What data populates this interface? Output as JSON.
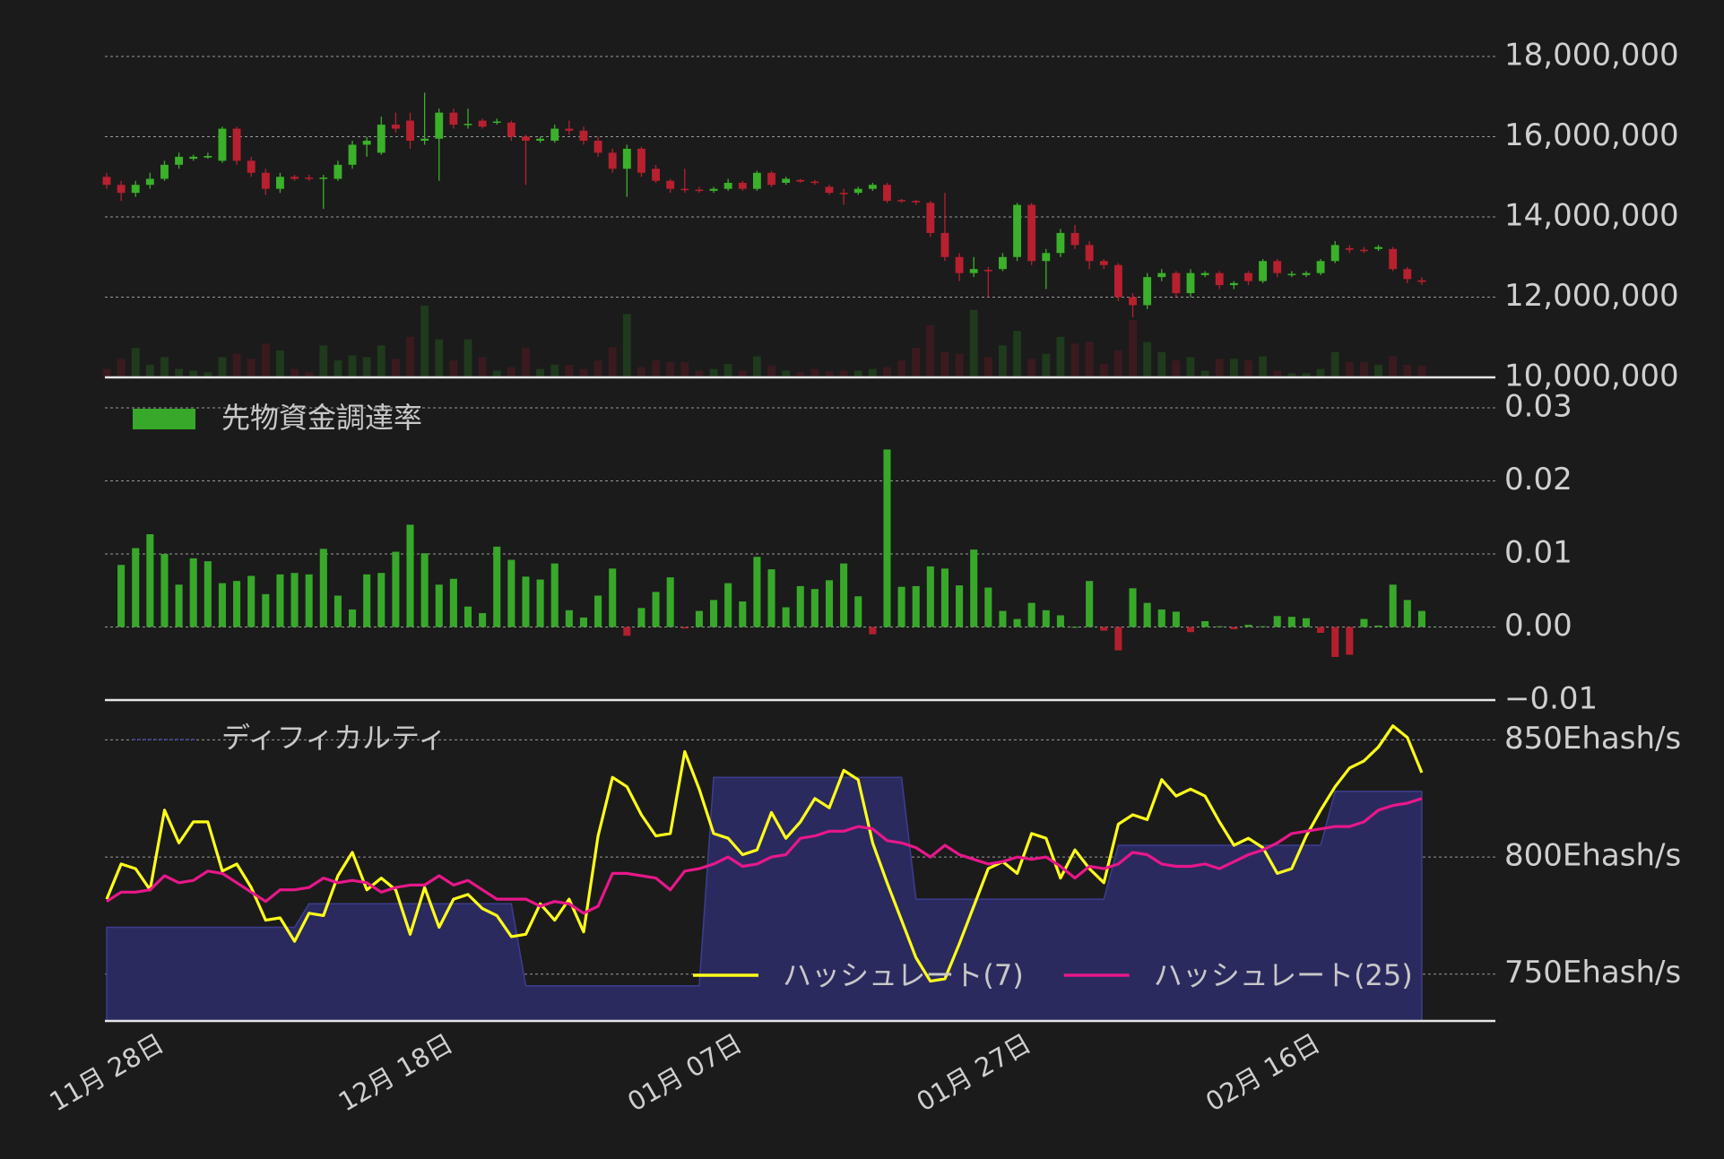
{
  "chart_data": [
    {
      "type": "candlestick",
      "open": [
        15000000,
        14800000,
        14600000,
        14800000,
        14950000,
        15300000,
        15450000,
        15480000,
        15400000,
        16200000,
        15400000,
        15100000,
        14700000,
        15000000,
        14980000,
        14950000,
        14950000,
        15300000,
        15800000,
        15600000,
        16300000,
        16400000,
        15900000,
        15950000,
        16600000,
        16300000,
        16400000,
        16350000,
        16350000,
        16000000,
        15900000,
        15900000,
        16200000,
        16150000,
        15900000,
        15600000,
        15200000,
        15700000,
        15200000,
        14900000,
        14700000,
        14680000,
        14650000,
        14700000,
        14850000,
        14700000,
        15100000,
        14850000,
        14920000,
        14880000,
        14750000,
        14600000,
        14600000,
        14700000,
        14800000,
        14420000,
        14400000,
        14350000,
        13600000,
        13000000,
        12600000,
        12680000,
        12700000,
        13000000,
        14300000,
        12900000,
        13100000,
        13600000,
        13300000,
        12900000,
        12800000,
        12000000,
        11800000,
        12500000,
        12600000,
        12100000,
        12550000,
        12600000,
        12300000,
        12600000,
        12400000,
        12900000,
        12550000,
        12550000,
        12600000,
        12900000,
        13220000,
        13180000,
        13200000,
        13200000,
        12700000,
        12420000
      ],
      "high": [
        15100000,
        14900000,
        14900000,
        15100000,
        15400000,
        15600000,
        15550000,
        15600000,
        16250000,
        16250000,
        15500000,
        15200000,
        15100000,
        15050000,
        15050000,
        15050000,
        15400000,
        15900000,
        16000000,
        16500000,
        16600000,
        16600000,
        17100000,
        16700000,
        16700000,
        16700000,
        16450000,
        16450000,
        16400000,
        16050000,
        16000000,
        16300000,
        16400000,
        16250000,
        16000000,
        15700000,
        15800000,
        15750000,
        15300000,
        14950000,
        15200000,
        14750000,
        14750000,
        14950000,
        14900000,
        15150000,
        15150000,
        15000000,
        14950000,
        14920000,
        14800000,
        14700000,
        14750000,
        14850000,
        14850000,
        14450000,
        14420000,
        14400000,
        14600000,
        13100000,
        13000000,
        12750000,
        13100000,
        14350000,
        14350000,
        13200000,
        13700000,
        13800000,
        13400000,
        12950000,
        12850000,
        12100000,
        12600000,
        12700000,
        12650000,
        12700000,
        12650000,
        12650000,
        12400000,
        12650000,
        12950000,
        12950000,
        12650000,
        12650000,
        12950000,
        13400000,
        13300000,
        13250000,
        13300000,
        13250000,
        12750000,
        12500000
      ],
      "low": [
        14700000,
        14400000,
        14500000,
        14700000,
        14900000,
        15200000,
        15400000,
        15450000,
        15350000,
        15300000,
        15000000,
        14550000,
        14600000,
        14900000,
        14900000,
        14200000,
        14900000,
        15200000,
        15500000,
        15550000,
        16100000,
        15700000,
        15800000,
        14900000,
        16200000,
        16200000,
        16200000,
        16300000,
        15900000,
        14800000,
        15850000,
        15850000,
        16050000,
        15800000,
        15500000,
        15100000,
        14500000,
        15000000,
        14850000,
        14600000,
        14600000,
        14600000,
        14600000,
        14650000,
        14650000,
        14650000,
        14750000,
        14800000,
        14850000,
        14800000,
        14550000,
        14300000,
        14550000,
        14650000,
        14350000,
        14350000,
        14300000,
        13500000,
        12900000,
        12400000,
        12500000,
        12000000,
        12650000,
        12900000,
        12800000,
        12200000,
        13000000,
        13200000,
        12700000,
        12700000,
        11900000,
        11500000,
        11700000,
        12400000,
        12000000,
        12000000,
        12500000,
        12200000,
        12200000,
        12300000,
        12350000,
        12500000,
        12500000,
        12500000,
        12550000,
        12850000,
        13100000,
        13100000,
        13150000,
        12650000,
        12350000,
        12300000
      ],
      "close": [
        14800000,
        14600000,
        14800000,
        14950000,
        15300000,
        15500000,
        15500000,
        15520000,
        16200000,
        15400000,
        15100000,
        14700000,
        15000000,
        14950000,
        14950000,
        14980000,
        15300000,
        15800000,
        15900000,
        16300000,
        16200000,
        15900000,
        15950000,
        16600000,
        16300000,
        16320000,
        16250000,
        16380000,
        16000000,
        15900000,
        15950000,
        16200000,
        16150000,
        15900000,
        15600000,
        15200000,
        15700000,
        15100000,
        14900000,
        14700000,
        14680000,
        14650000,
        14700000,
        14850000,
        14700000,
        15100000,
        14800000,
        14950000,
        14880000,
        14850000,
        14600000,
        14580000,
        14700000,
        14800000,
        14400000,
        14400000,
        14380000,
        13600000,
        13000000,
        12600000,
        12700000,
        12650000,
        13000000,
        14300000,
        12900000,
        13100000,
        13600000,
        13300000,
        12900000,
        12800000,
        12000000,
        11800000,
        12500000,
        12600000,
        12100000,
        12600000,
        12600000,
        12300000,
        12350000,
        12400000,
        12900000,
        12600000,
        12580000,
        12600000,
        12900000,
        13300000,
        13180000,
        13150000,
        13250000,
        12700000,
        12450000,
        12380000
      ],
      "volume": [
        10,
        22,
        35,
        15,
        24,
        10,
        8,
        6,
        24,
        28,
        22,
        40,
        32,
        10,
        6,
        38,
        20,
        26,
        24,
        38,
        22,
        48,
        85,
        45,
        20,
        45,
        24,
        8,
        12,
        35,
        10,
        15,
        15,
        10,
        20,
        36,
        75,
        12,
        20,
        18,
        18,
        8,
        10,
        16,
        8,
        25,
        14,
        8,
        6,
        10,
        7,
        8,
        8,
        10,
        12,
        20,
        35,
        62,
        30,
        28,
        80,
        24,
        38,
        55,
        22,
        28,
        48,
        40,
        42,
        16,
        32,
        68,
        42,
        30,
        20,
        24,
        8,
        22,
        22,
        20,
        25,
        8,
        5,
        5,
        10,
        30,
        18,
        18,
        15,
        25,
        15,
        14
      ],
      "up_color": "#3bb02a",
      "down_color": "#b8202f",
      "up_volume_color": "#1f3a1c",
      "down_volume_color": "#3b1a1f",
      "ylim": [
        10000000,
        18000000
      ],
      "yticks": [
        {
          "value": 10000000,
          "label": "10,000,000"
        },
        {
          "value": 12000000,
          "label": "12,000,000"
        },
        {
          "value": 14000000,
          "label": "14,000,000"
        },
        {
          "value": 16000000,
          "label": "16,000,000"
        },
        {
          "value": 18000000,
          "label": "18,000,000"
        }
      ],
      "grid": true
    },
    {
      "type": "bar",
      "series": [
        {
          "name": "先物資金調達率",
          "color": "#38a82a",
          "negative_color": "#b31f2e",
          "values": [
            null,
            0.0085,
            0.0108,
            0.0127,
            0.01,
            0.0058,
            0.0094,
            0.009,
            0.006,
            0.0063,
            0.007,
            0.0045,
            0.0072,
            0.0074,
            0.0072,
            0.0107,
            0.0043,
            0.0024,
            0.0072,
            0.0074,
            0.0103,
            0.014,
            0.0101,
            0.0058,
            0.0066,
            0.0028,
            0.0019,
            0.011,
            0.0092,
            0.0069,
            0.0065,
            0.0087,
            0.0023,
            0.0013,
            0.0043,
            0.008,
            -0.0012,
            0.0026,
            0.0048,
            0.0068,
            -0.0002,
            0.0022,
            0.0037,
            0.006,
            0.0035,
            0.0096,
            0.0079,
            0.0027,
            0.0056,
            0.0052,
            0.0064,
            0.0087,
            0.0042,
            -0.001,
            0.0243,
            0.0055,
            0.0056,
            0.0083,
            0.008,
            0.0057,
            0.0106,
            0.0054,
            0.0022,
            0.0011,
            0.0033,
            0.0023,
            0.0016,
            0.0,
            0.0063,
            -0.0005,
            -0.0032,
            0.0053,
            0.0033,
            0.0024,
            0.0021,
            -0.0007,
            0.0008,
            0.0001,
            -0.0003,
            0.0003,
            0.0001,
            0.0015,
            0.0014,
            0.0012,
            -0.0008,
            -0.0041,
            -0.0038,
            0.0011,
            0.0002,
            0.0058,
            0.0037,
            0.0022
          ]
        }
      ],
      "ylim": [
        -0.01,
        0.03
      ],
      "yticks": [
        {
          "value": -0.01,
          "label": "−0.01"
        },
        {
          "value": 0,
          "label": "0.00"
        },
        0.01,
        0.02,
        0.03
      ],
      "grid": true,
      "legend": "top-left"
    },
    {
      "type": "line",
      "categories": [
        "11月 28日",
        null,
        null,
        null,
        null,
        null,
        null,
        null,
        null,
        null,
        null,
        null,
        null,
        null,
        null,
        null,
        null,
        null,
        null,
        null,
        "12月 18日",
        null,
        null,
        null,
        null,
        null,
        null,
        null,
        null,
        null,
        null,
        null,
        null,
        null,
        null,
        null,
        null,
        null,
        null,
        null,
        "01月 07日",
        null,
        null,
        null,
        null,
        null,
        null,
        null,
        null,
        null,
        null,
        null,
        null,
        null,
        null,
        null,
        null,
        null,
        null,
        null,
        "01月 27日",
        null,
        null,
        null,
        null,
        null,
        null,
        null,
        null,
        null,
        null,
        null,
        null,
        null,
        null,
        null,
        null,
        null,
        null,
        null,
        "02月 16日",
        null,
        null,
        null,
        null,
        null,
        null,
        null,
        null,
        null,
        null,
        null
      ],
      "series": [
        {
          "name": "ディフィカルティ",
          "kind": "area",
          "color": "#2b2a5f",
          "line_color": "#3d3d8e",
          "values": [
            770,
            770,
            770,
            770,
            770,
            770,
            770,
            770,
            770,
            770,
            770,
            770,
            770,
            770,
            780,
            780,
            780,
            780,
            780,
            780,
            780,
            780,
            780,
            780,
            780,
            780,
            780,
            780,
            780,
            745,
            745,
            745,
            745,
            745,
            745,
            745,
            745,
            745,
            745,
            745,
            745,
            745,
            834,
            834,
            834,
            834,
            834,
            834,
            834,
            834,
            834,
            834,
            834,
            834,
            834,
            834,
            782,
            782,
            782,
            782,
            782,
            782,
            782,
            782,
            782,
            782,
            782,
            782,
            782,
            782,
            805,
            805,
            805,
            805,
            805,
            805,
            805,
            805,
            805,
            805,
            805,
            805,
            805,
            805,
            805,
            828,
            828,
            828,
            828,
            828,
            828,
            828
          ]
        },
        {
          "name": "ハッシュレート(7)",
          "color": "#ffff1a",
          "values": [
            782,
            797,
            795,
            786,
            820,
            806,
            815,
            815,
            794,
            797,
            787,
            773,
            774,
            764,
            776,
            775,
            792,
            802,
            786,
            791,
            786,
            767,
            787,
            770,
            782,
            784,
            778,
            775,
            766,
            767,
            780,
            773,
            782,
            768,
            809,
            834,
            830,
            818,
            809,
            810,
            845,
            829,
            810,
            808,
            801,
            803,
            819,
            808,
            815,
            825,
            821,
            837,
            833,
            806,
            789,
            773,
            757,
            747,
            748,
            763,
            779,
            795,
            798,
            793,
            810,
            808,
            791,
            803,
            795,
            789,
            814,
            818,
            816,
            833,
            826,
            829,
            826,
            815,
            805,
            808,
            804,
            793,
            795,
            809,
            820,
            830,
            838,
            841,
            847,
            856,
            851,
            836
          ]
        },
        {
          "name": "ハッシュレート(25)",
          "color": "#e8178a",
          "values": [
            781,
            785,
            785,
            786,
            792,
            789,
            790,
            794,
            793,
            789,
            785,
            781,
            786,
            786,
            787,
            791,
            789,
            790,
            789,
            785,
            787,
            788,
            788,
            792,
            788,
            790,
            786,
            782,
            782,
            782,
            779,
            781,
            780,
            776,
            779,
            793,
            793,
            792,
            791,
            786,
            794,
            795,
            797,
            800,
            796,
            797,
            800,
            801,
            808,
            809,
            811,
            811,
            813,
            812,
            807,
            806,
            804,
            800,
            805,
            801,
            799,
            797,
            798,
            800,
            799,
            800,
            796,
            791,
            796,
            795,
            797,
            802,
            801,
            797,
            796,
            796,
            797,
            795,
            798,
            801,
            803,
            806,
            810,
            811,
            812,
            813,
            813,
            815,
            820,
            822,
            823,
            825
          ]
        }
      ],
      "ylim": [
        730,
        867
      ],
      "yticks": [
        {
          "value": 750,
          "label": "750Ehash/s"
        },
        {
          "value": 800,
          "label": "800Ehash/s"
        },
        {
          "value": 850,
          "label": "850Ehash/s"
        }
      ],
      "grid": true,
      "legend": "bottom-right"
    }
  ]
}
